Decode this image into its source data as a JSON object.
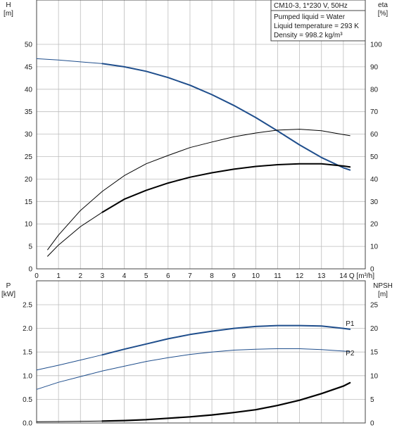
{
  "infobox": {
    "title": "CM10-3, 1*230 V, 50Hz",
    "lines": [
      "Pumped liquid = Water",
      "Liquid temperature = 293 K",
      "Density = 998.2 kg/m³"
    ]
  },
  "colors": {
    "blue": "#1f4e8c",
    "black": "#000000",
    "grid": "#bdbdbd"
  },
  "chart_data": [
    {
      "type": "line",
      "name": "top",
      "xlabel": "Q [m³/h]",
      "ylabel_left": [
        "H",
        "[m]"
      ],
      "ylabel_right": [
        "eta",
        "[%]"
      ],
      "xlim": [
        0,
        15
      ],
      "ylim_left": [
        0,
        50
      ],
      "ylim_right": [
        0,
        100
      ],
      "xticks": [
        "0",
        "1",
        "2",
        "3",
        "4",
        "5",
        "6",
        "7",
        "8",
        "9",
        "10",
        "11",
        "12",
        "13",
        "14"
      ],
      "yticks_left": [
        "0",
        "5",
        "10",
        "15",
        "20",
        "25",
        "30",
        "35",
        "40",
        "45",
        "50"
      ],
      "yticks_right": [
        "0",
        "10",
        "20",
        "30",
        "40",
        "50",
        "60",
        "70",
        "80",
        "90",
        "100"
      ],
      "grid": true,
      "series": [
        {
          "axis": "left",
          "color": "#1f4e8c",
          "width": 1,
          "x": [
            0,
            1,
            2,
            3
          ],
          "y": [
            46.8,
            46.5,
            46.1,
            45.7
          ]
        },
        {
          "axis": "left",
          "color": "#1f4e8c",
          "width": 2,
          "x": [
            3,
            4,
            5,
            6,
            7,
            8,
            9,
            10,
            11,
            12,
            13,
            14,
            14.3
          ],
          "y": [
            45.7,
            45.0,
            44.0,
            42.6,
            40.9,
            38.8,
            36.4,
            33.7,
            30.7,
            27.6,
            24.8,
            22.5,
            22.0
          ]
        },
        {
          "axis": "right",
          "color": "#000000",
          "width": 1,
          "x": [
            0.5,
            1,
            2,
            3,
            4,
            5,
            6,
            7,
            8,
            9,
            10,
            11,
            12,
            13,
            14,
            14.3
          ],
          "y": [
            8.5,
            15,
            26,
            34.5,
            41.5,
            46.8,
            50.5,
            54,
            56.5,
            58.8,
            60.5,
            61.8,
            62.2,
            61.5,
            59.8,
            59.3
          ]
        },
        {
          "axis": "left",
          "color": "#000000",
          "width": 1,
          "x": [
            0.5,
            1,
            2,
            3
          ],
          "y": [
            2.8,
            5.3,
            9.4,
            12.6
          ]
        },
        {
          "axis": "left",
          "color": "#000000",
          "width": 2,
          "x": [
            3,
            4,
            5,
            6,
            7,
            8,
            9,
            10,
            11,
            12,
            13,
            14,
            14.3
          ],
          "y": [
            12.6,
            15.5,
            17.5,
            19.1,
            20.4,
            21.4,
            22.2,
            22.8,
            23.2,
            23.4,
            23.4,
            22.9,
            22.7
          ]
        }
      ]
    },
    {
      "type": "line",
      "name": "bottom",
      "ylabel_left": [
        "P",
        "[kW]"
      ],
      "ylabel_right": [
        "NPSH",
        "[m]"
      ],
      "xlim": [
        0,
        15
      ],
      "ylim_left": [
        0,
        2.5
      ],
      "ylim_right": [
        0,
        25
      ],
      "yticks_left": [
        "0.0",
        "0.5",
        "1.0",
        "1.5",
        "2.0",
        "2.5"
      ],
      "yticks_right": [
        "0",
        "5",
        "10",
        "15",
        "20",
        "25"
      ],
      "grid": true,
      "series": [
        {
          "name": "P1",
          "axis": "left",
          "color": "#1f4e8c",
          "width": 1,
          "x": [
            0,
            1,
            2,
            3
          ],
          "y": [
            1.12,
            1.22,
            1.33,
            1.44
          ]
        },
        {
          "name": "P1",
          "axis": "left",
          "color": "#1f4e8c",
          "width": 2,
          "x": [
            3,
            4,
            5,
            6,
            7,
            8,
            9,
            10,
            11,
            12,
            13,
            14,
            14.3
          ],
          "y": [
            1.44,
            1.56,
            1.67,
            1.78,
            1.87,
            1.94,
            2.0,
            2.04,
            2.06,
            2.06,
            2.05,
            2.0,
            1.98
          ]
        },
        {
          "name": "P2",
          "axis": "left",
          "color": "#1f4e8c",
          "width": 1,
          "x": [
            0,
            1,
            2,
            3,
            4,
            5,
            6,
            7,
            8,
            9,
            10,
            11,
            12,
            13,
            14,
            14.3
          ],
          "y": [
            0.71,
            0.86,
            0.98,
            1.1,
            1.2,
            1.3,
            1.38,
            1.45,
            1.5,
            1.54,
            1.56,
            1.57,
            1.57,
            1.55,
            1.52,
            1.51
          ]
        },
        {
          "name": "NPSH",
          "axis": "right",
          "color": "#000000",
          "width": 1,
          "x": [
            0,
            1,
            2,
            3
          ],
          "y": [
            0.25,
            0.3,
            0.35,
            0.4
          ]
        },
        {
          "name": "NPSH",
          "axis": "right",
          "color": "#000000",
          "width": 2.2,
          "x": [
            3,
            4,
            5,
            6,
            7,
            8,
            9,
            10,
            11,
            12,
            13,
            14,
            14.3
          ],
          "y": [
            0.4,
            0.5,
            0.7,
            1.0,
            1.3,
            1.7,
            2.2,
            2.8,
            3.7,
            4.8,
            6.2,
            7.8,
            8.5
          ]
        }
      ],
      "curve_labels": [
        {
          "text": "P1",
          "x": 14.3,
          "y": 2.05,
          "color": "#1f4e8c"
        },
        {
          "text": "P2",
          "x": 14.3,
          "y": 1.43,
          "color": "#1f4e8c"
        }
      ]
    }
  ]
}
